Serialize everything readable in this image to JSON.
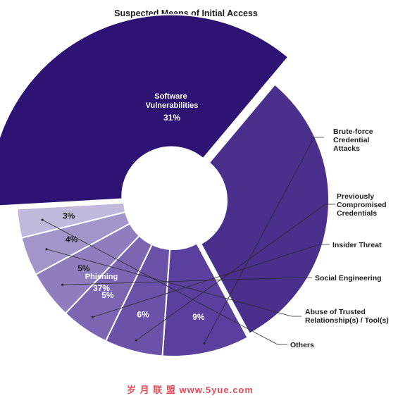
{
  "chart_data": {
    "type": "pie",
    "variant": "donut-exploded",
    "title": "Suspected Means of Initial Access",
    "categories": [
      "Software Vulnerabilities",
      "Brute-force Credential Attacks",
      "Previously Compromised Credentials",
      "Insider Threat",
      "Social Engineering",
      "Abuse of Trusted Relationship(s) / Tool(s)",
      "Others",
      "Phishing"
    ],
    "values": [
      31,
      9,
      6,
      5,
      5,
      4,
      3,
      37
    ],
    "labels": [
      "31%",
      "9%",
      "6%",
      "5%",
      "5%",
      "4%",
      "3%",
      "37%"
    ],
    "colors": [
      "#4a2f8c",
      "#5b3f9e",
      "#6b52a9",
      "#7c66b4",
      "#8f7dbd",
      "#a394c9",
      "#c2b8dc",
      "#2d1373"
    ],
    "legend": "callouts-right"
  },
  "watermark": "岁 月 联 盟   www.5yue.com"
}
